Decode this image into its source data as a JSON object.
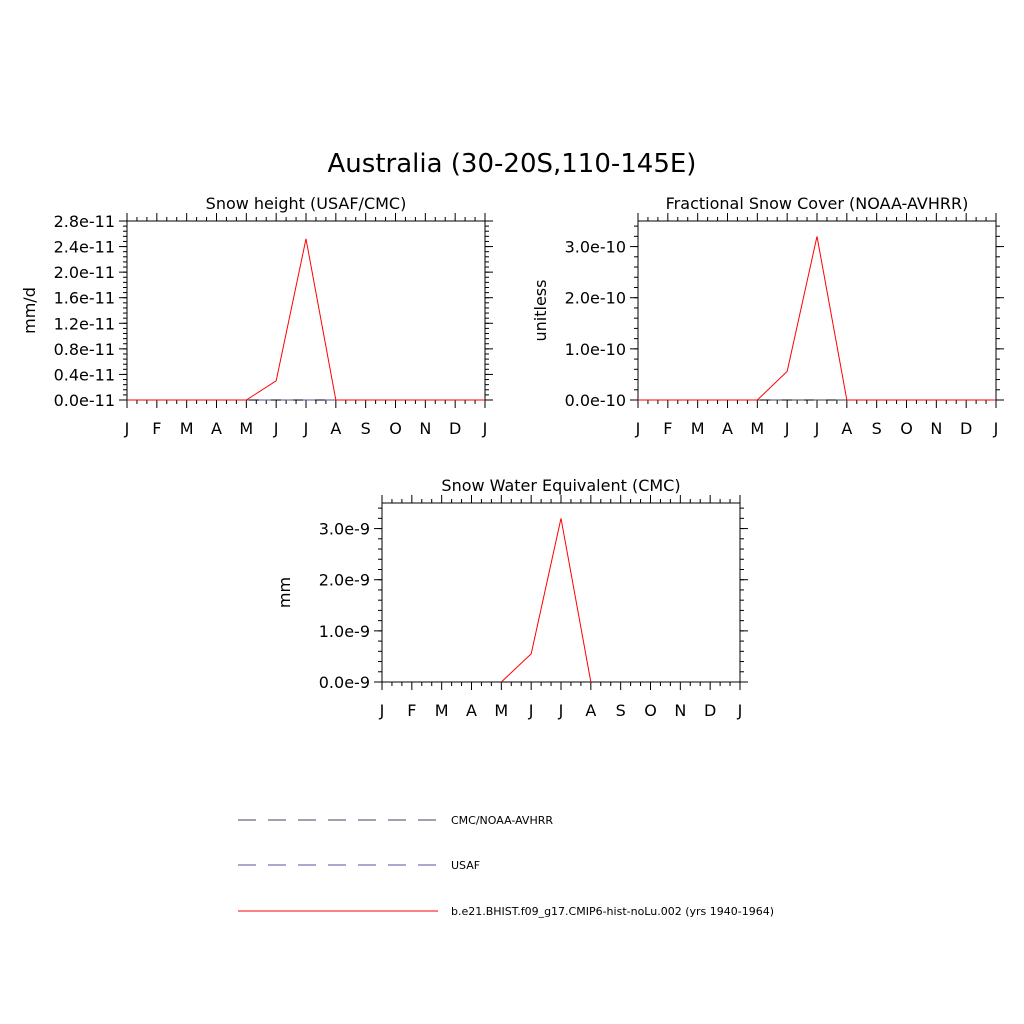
{
  "figure_title": "Australia (30-20S,110-145E)",
  "chart_data": [
    {
      "type": "line",
      "title": "Snow height (USAF/CMC)",
      "xlabel": "",
      "ylabel": "mm/d",
      "categories": [
        "J",
        "F",
        "M",
        "A",
        "M",
        "J",
        "J",
        "A",
        "S",
        "O",
        "N",
        "D",
        "J"
      ],
      "ylim": [
        0,
        2.8e-11
      ],
      "yticks": [
        0,
        4e-12,
        8e-12,
        1.2e-11,
        1.6e-11,
        2e-11,
        2.4e-11,
        2.8e-11
      ],
      "ytick_labels": [
        "0.0e-11",
        "0.4e-11",
        "0.8e-11",
        "1.2e-11",
        "1.6e-11",
        "2.0e-11",
        "2.4e-11",
        "2.8e-11"
      ],
      "series": [
        {
          "name": "b.e21.BHIST.f09_g17.CMIP6-hist-noLu.002 (yrs 1940-1964)",
          "color": "#ff0000",
          "dash": "solid",
          "values": [
            0,
            0,
            0,
            0,
            0,
            3e-12,
            2.52e-11,
            0,
            0,
            0,
            0,
            0,
            0
          ]
        },
        {
          "name": "USAF",
          "color": "#5050a0",
          "dash": "dashed",
          "values": [
            0,
            0,
            0,
            0,
            0,
            0,
            0,
            0,
            0,
            0,
            0,
            0,
            0
          ]
        }
      ]
    },
    {
      "type": "line",
      "title": "Fractional Snow Cover (NOAA-AVHRR)",
      "xlabel": "",
      "ylabel": "unitless",
      "categories": [
        "J",
        "F",
        "M",
        "A",
        "M",
        "J",
        "J",
        "A",
        "S",
        "O",
        "N",
        "D",
        "J"
      ],
      "ylim": [
        0,
        3.5e-10
      ],
      "yticks": [
        0,
        1e-10,
        2e-10,
        3e-10
      ],
      "ytick_labels": [
        "0.0e-10",
        "1.0e-10",
        "2.0e-10",
        "3.0e-10"
      ],
      "series": [
        {
          "name": "b.e21.BHIST.f09_g17.CMIP6-hist-noLu.002 (yrs 1940-1964)",
          "color": "#ff0000",
          "dash": "solid",
          "values": [
            0,
            0,
            0,
            0,
            0,
            5.6e-11,
            3.2e-10,
            0,
            0,
            0,
            0,
            0,
            0
          ]
        },
        {
          "name": "CMC/NOAA-AVHRR",
          "color": "#404060",
          "dash": "dashed",
          "values": [
            0,
            0,
            0,
            0,
            0,
            0,
            0,
            0,
            0,
            0,
            0,
            0,
            0
          ]
        }
      ]
    },
    {
      "type": "line",
      "title": "Snow Water Equivalent (CMC)",
      "xlabel": "",
      "ylabel": "mm",
      "categories": [
        "J",
        "F",
        "M",
        "A",
        "M",
        "J",
        "J",
        "A",
        "S",
        "O",
        "N",
        "D",
        "J"
      ],
      "ylim": [
        0,
        3.5e-09
      ],
      "yticks": [
        0,
        1e-09,
        2e-09,
        3e-09
      ],
      "ytick_labels": [
        "0.0e-9",
        "1.0e-9",
        "2.0e-9",
        "3.0e-9"
      ],
      "series": [
        {
          "name": "b.e21.BHIST.f09_g17.CMIP6-hist-noLu.002 (yrs 1940-1964)",
          "color": "#ff0000",
          "dash": "solid",
          "values": [
            null,
            null,
            null,
            null,
            0,
            5.5e-10,
            3.2e-09,
            0,
            null,
            null,
            null,
            null,
            null
          ]
        }
      ]
    }
  ],
  "legend": {
    "items": [
      {
        "label": "CMC/NOAA-AVHRR",
        "color": "#404060",
        "dash": "dashed"
      },
      {
        "label": "USAF",
        "color": "#5050a0",
        "dash": "dashed"
      },
      {
        "label": "b.e21.BHIST.f09_g17.CMIP6-hist-noLu.002 (yrs 1940-1964)",
        "color": "#ff0000",
        "dash": "solid"
      }
    ]
  }
}
